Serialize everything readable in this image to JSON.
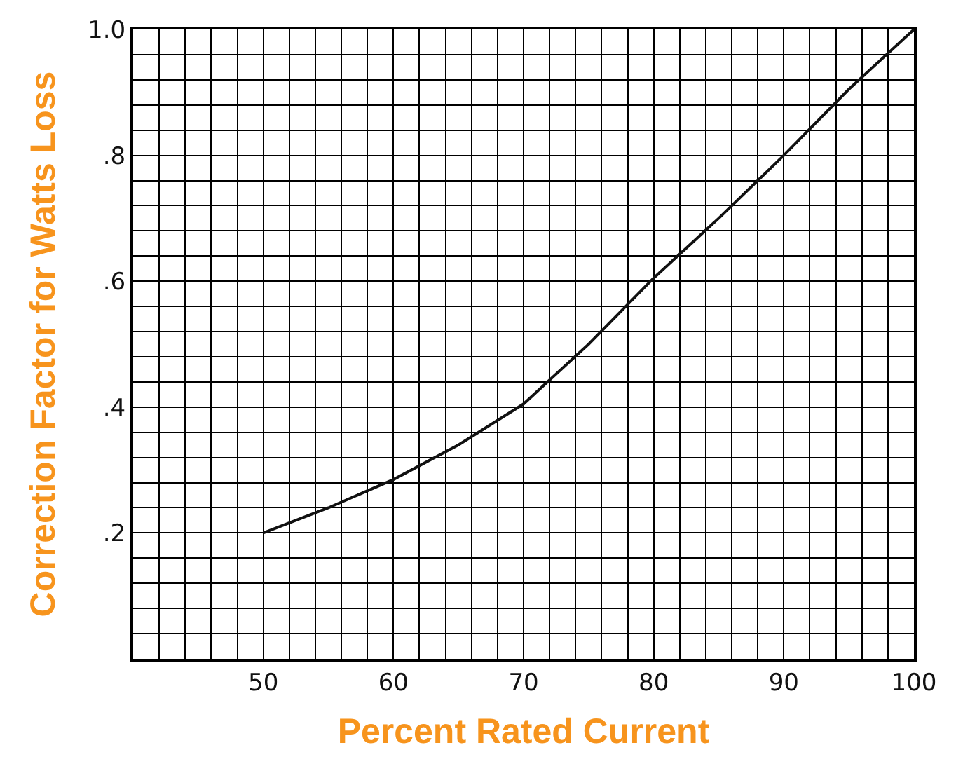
{
  "chart_data": {
    "type": "line",
    "xlabel": "Percent Rated Current",
    "ylabel": "Correction Factor for Watts Loss",
    "x": [
      50,
      55,
      60,
      65,
      70,
      75,
      80,
      85,
      90,
      95,
      100
    ],
    "series": [
      {
        "color": "#111111",
        "values": [
          0.2,
          0.24,
          0.285,
          0.34,
          0.405,
          0.5,
          0.605,
          0.7,
          0.8,
          0.905,
          1.0
        ]
      }
    ],
    "xlim": [
      40,
      100
    ],
    "xticks": [
      50,
      60,
      70,
      80,
      90,
      100
    ],
    "ylim": [
      0,
      1.0
    ],
    "yticks": [
      {
        "value": 0.2,
        "label": ".2"
      },
      {
        "value": 0.4,
        "label": ".4"
      },
      {
        "value": 0.6,
        "label": ".6"
      },
      {
        "value": 0.8,
        "label": ".8"
      },
      {
        "value": 1.0,
        "label": "1.0"
      }
    ],
    "grid": true,
    "marker": "none",
    "line_style": "solid"
  }
}
